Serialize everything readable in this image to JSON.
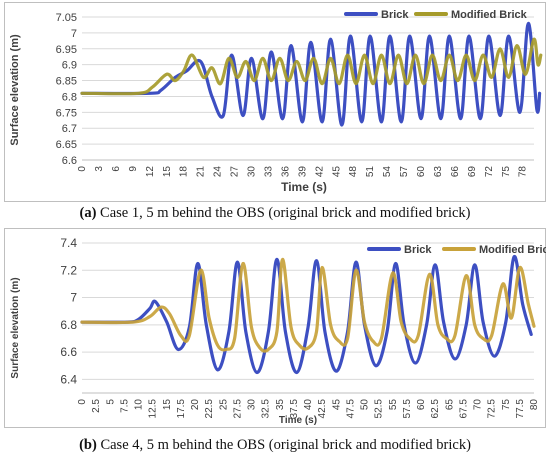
{
  "colors": {
    "brick": "#3d4fc2",
    "modified": "#a69b2a",
    "modified_b": "#c8a23a",
    "grid": "#d9d9d9",
    "axis": "#bfbfbf"
  },
  "captions": {
    "a_letter": "(a)",
    "a_text": " Case 1, 5 m behind the OBS (original brick and modified brick)",
    "b_letter": "(b)",
    "b_text": " Case 4, 5 m behind the OBS (original brick and modified brick)"
  },
  "chart_data": [
    {
      "type": "line",
      "title": "",
      "xlabel": "Time (s)",
      "ylabel": "Surface elevation (m)",
      "xlim": [
        0,
        80
      ],
      "ylim": [
        6.6,
        7.05
      ],
      "x_ticks": [
        "0",
        "3",
        "6",
        "9",
        "12",
        "15",
        "18",
        "21",
        "24",
        "27",
        "30",
        "33",
        "36",
        "39",
        "42",
        "45",
        "48",
        "51",
        "54",
        "57",
        "60",
        "63",
        "66",
        "69",
        "72",
        "75",
        "78"
      ],
      "y_ticks": [
        "6.6",
        "6.65",
        "6.7",
        "6.75",
        "6.8",
        "6.85",
        "6.9",
        "6.95",
        "7",
        "7.05"
      ],
      "grid": "horizontal",
      "legend": "top-right",
      "series": [
        {
          "name": "Brick",
          "points": [
            [
              0,
              6.81
            ],
            [
              12,
              6.81
            ],
            [
              14,
              6.82
            ],
            [
              16.5,
              6.86
            ],
            [
              18.5,
              6.88
            ],
            [
              21,
              6.91
            ],
            [
              23,
              6.8
            ],
            [
              25,
              6.74
            ],
            [
              26.5,
              6.93
            ],
            [
              28.5,
              6.74
            ],
            [
              30,
              6.92
            ],
            [
              32,
              6.73
            ],
            [
              33.5,
              6.94
            ],
            [
              35.5,
              6.73
            ],
            [
              37,
              6.96
            ],
            [
              39,
              6.72
            ],
            [
              40.5,
              6.97
            ],
            [
              42.5,
              6.72
            ],
            [
              44,
              6.98
            ],
            [
              46,
              6.71
            ],
            [
              47.5,
              6.99
            ],
            [
              49.5,
              6.72
            ],
            [
              51,
              6.99
            ],
            [
              53,
              6.72
            ],
            [
              54.5,
              6.99
            ],
            [
              56.5,
              6.72
            ],
            [
              58,
              6.99
            ],
            [
              60,
              6.73
            ],
            [
              61.5,
              6.99
            ],
            [
              63.5,
              6.73
            ],
            [
              65,
              6.99
            ],
            [
              67,
              6.73
            ],
            [
              68.5,
              6.99
            ],
            [
              70.5,
              6.73
            ],
            [
              72,
              6.99
            ],
            [
              74,
              6.74
            ],
            [
              75.5,
              6.99
            ],
            [
              77.5,
              6.75
            ],
            [
              79,
              7.03
            ],
            [
              80.5,
              6.76
            ],
            [
              81,
              6.81
            ]
          ]
        },
        {
          "name": "Modified Brick",
          "points": [
            [
              0,
              6.81
            ],
            [
              10,
              6.81
            ],
            [
              12.5,
              6.83
            ],
            [
              15,
              6.87
            ],
            [
              16.5,
              6.85
            ],
            [
              18,
              6.88
            ],
            [
              19.5,
              6.93
            ],
            [
              21.5,
              6.86
            ],
            [
              23,
              6.89
            ],
            [
              24.5,
              6.84
            ],
            [
              26,
              6.92
            ],
            [
              27.5,
              6.86
            ],
            [
              29,
              6.91
            ],
            [
              30.5,
              6.85
            ],
            [
              32,
              6.92
            ],
            [
              33.5,
              6.85
            ],
            [
              35,
              6.92
            ],
            [
              36.5,
              6.85
            ],
            [
              38,
              6.91
            ],
            [
              39.5,
              6.85
            ],
            [
              41,
              6.92
            ],
            [
              42.5,
              6.84
            ],
            [
              44,
              6.92
            ],
            [
              45.5,
              6.84
            ],
            [
              47,
              6.93
            ],
            [
              48.5,
              6.84
            ],
            [
              50,
              6.93
            ],
            [
              51.5,
              6.84
            ],
            [
              53,
              6.93
            ],
            [
              54.5,
              6.84
            ],
            [
              56,
              6.93
            ],
            [
              57.5,
              6.84
            ],
            [
              59,
              6.93
            ],
            [
              60.5,
              6.84
            ],
            [
              62,
              6.93
            ],
            [
              63.5,
              6.85
            ],
            [
              65,
              6.93
            ],
            [
              66.5,
              6.85
            ],
            [
              68,
              6.93
            ],
            [
              69.5,
              6.85
            ],
            [
              71,
              6.93
            ],
            [
              72.5,
              6.86
            ],
            [
              74,
              6.95
            ],
            [
              75.5,
              6.86
            ],
            [
              77,
              6.96
            ],
            [
              78.5,
              6.87
            ],
            [
              80,
              6.98
            ],
            [
              80.7,
              6.9
            ],
            [
              81.2,
              6.93
            ]
          ]
        }
      ]
    },
    {
      "type": "line",
      "title": "",
      "xlabel": "Time (s)",
      "ylabel": "Surface elevation (m)",
      "xlim": [
        0,
        80
      ],
      "ylim": [
        6.3,
        7.4
      ],
      "x_ticks": [
        "0",
        "2.5",
        "5",
        "7.5",
        "10",
        "12.5",
        "15",
        "17.5",
        "20",
        "22.5",
        "25",
        "27.5",
        "30",
        "32.5",
        "35",
        "37.5",
        "40",
        "42.5",
        "45",
        "47.5",
        "50",
        "52.5",
        "55",
        "57.5",
        "60",
        "62.5",
        "65",
        "67.5",
        "70",
        "72.5",
        "75",
        "77.5",
        "80"
      ],
      "y_ticks": [
        "6.4",
        "6.6",
        "6.8",
        "7",
        "7.2",
        "7.4"
      ],
      "grid": "horizontal",
      "legend": "top-right",
      "series": [
        {
          "name": "Brick",
          "points": [
            [
              0,
              6.82
            ],
            [
              8,
              6.82
            ],
            [
              10,
              6.84
            ],
            [
              12,
              6.92
            ],
            [
              13,
              6.97
            ],
            [
              15,
              6.82
            ],
            [
              17,
              6.62
            ],
            [
              19,
              6.78
            ],
            [
              20.5,
              7.25
            ],
            [
              22,
              6.8
            ],
            [
              24,
              6.47
            ],
            [
              26,
              6.75
            ],
            [
              27.5,
              7.26
            ],
            [
              29,
              6.75
            ],
            [
              31,
              6.45
            ],
            [
              33,
              6.75
            ],
            [
              34.5,
              7.28
            ],
            [
              36,
              6.75
            ],
            [
              38,
              6.45
            ],
            [
              40,
              6.78
            ],
            [
              41.5,
              7.27
            ],
            [
              43,
              6.75
            ],
            [
              45,
              6.46
            ],
            [
              47,
              6.75
            ],
            [
              48.5,
              7.26
            ],
            [
              50,
              6.8
            ],
            [
              52,
              6.5
            ],
            [
              54,
              6.75
            ],
            [
              55.5,
              7.25
            ],
            [
              57,
              6.8
            ],
            [
              59,
              6.52
            ],
            [
              61,
              6.8
            ],
            [
              62.5,
              7.24
            ],
            [
              64,
              6.82
            ],
            [
              66,
              6.55
            ],
            [
              68,
              6.8
            ],
            [
              69.5,
              7.24
            ],
            [
              71,
              6.82
            ],
            [
              73,
              6.57
            ],
            [
              75,
              6.82
            ],
            [
              76.5,
              7.3
            ],
            [
              78,
              6.95
            ],
            [
              79.5,
              6.73
            ]
          ]
        },
        {
          "name": "Modified Brick",
          "points": [
            [
              0,
              6.82
            ],
            [
              9,
              6.82
            ],
            [
              12,
              6.86
            ],
            [
              14,
              6.93
            ],
            [
              15.5,
              6.88
            ],
            [
              17.5,
              6.72
            ],
            [
              19,
              6.72
            ],
            [
              21,
              7.2
            ],
            [
              22.5,
              6.85
            ],
            [
              24,
              6.65
            ],
            [
              25.5,
              6.62
            ],
            [
              27,
              6.7
            ],
            [
              28.5,
              7.25
            ],
            [
              30,
              6.78
            ],
            [
              31.5,
              6.63
            ],
            [
              33,
              6.62
            ],
            [
              34.5,
              6.75
            ],
            [
              35.5,
              7.28
            ],
            [
              37,
              6.78
            ],
            [
              38.5,
              6.65
            ],
            [
              40,
              6.63
            ],
            [
              41.5,
              6.75
            ],
            [
              42.5,
              7.22
            ],
            [
              44,
              6.8
            ],
            [
              45.5,
              6.68
            ],
            [
              47,
              6.7
            ],
            [
              48.5,
              7.2
            ],
            [
              50,
              6.82
            ],
            [
              51.5,
              6.68
            ],
            [
              53,
              6.7
            ],
            [
              55,
              7.18
            ],
            [
              56.5,
              6.82
            ],
            [
              58,
              6.7
            ],
            [
              59.5,
              6.72
            ],
            [
              61.5,
              7.17
            ],
            [
              63,
              6.8
            ],
            [
              64.5,
              6.7
            ],
            [
              66,
              6.72
            ],
            [
              68,
              7.16
            ],
            [
              69.5,
              6.8
            ],
            [
              71,
              6.7
            ],
            [
              72.5,
              6.72
            ],
            [
              74.5,
              7.1
            ],
            [
              76,
              6.85
            ],
            [
              77.5,
              7.22
            ],
            [
              79,
              6.95
            ],
            [
              80,
              6.79
            ]
          ]
        }
      ]
    }
  ]
}
